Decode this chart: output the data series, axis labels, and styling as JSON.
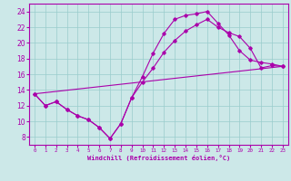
{
  "xlabel": "Windchill (Refroidissement éolien,°C)",
  "line_color": "#aa00aa",
  "background_color": "#cce8e8",
  "grid_color": "#99cccc",
  "xlim": [
    -0.5,
    23.5
  ],
  "ylim": [
    7.0,
    25.0
  ],
  "yticks": [
    8,
    10,
    12,
    14,
    16,
    18,
    20,
    22,
    24
  ],
  "xticks": [
    0,
    1,
    2,
    3,
    4,
    5,
    6,
    7,
    8,
    9,
    10,
    11,
    12,
    13,
    14,
    15,
    16,
    17,
    18,
    19,
    20,
    21,
    22,
    23
  ],
  "line1_x": [
    0,
    1,
    2,
    3,
    4,
    5,
    6,
    7,
    8,
    9,
    10,
    11,
    12,
    13,
    14,
    15,
    16,
    17,
    18,
    19,
    20,
    21,
    22,
    23
  ],
  "line1_y": [
    13.5,
    12.0,
    12.5,
    11.5,
    10.7,
    10.2,
    9.2,
    7.8,
    9.7,
    13.0,
    15.7,
    18.7,
    21.2,
    23.0,
    23.5,
    23.7,
    24.0,
    22.5,
    21.0,
    19.0,
    17.8,
    17.5,
    17.3,
    17.0
  ],
  "line2_x": [
    0,
    1,
    2,
    3,
    4,
    5,
    6,
    7,
    8,
    9,
    10,
    11,
    12,
    13,
    14,
    15,
    16,
    17,
    18,
    19,
    20,
    21,
    22,
    23
  ],
  "line2_y": [
    13.5,
    12.0,
    12.5,
    11.5,
    10.7,
    10.2,
    9.2,
    7.8,
    9.7,
    13.0,
    15.0,
    16.8,
    18.8,
    20.3,
    21.5,
    22.3,
    23.0,
    22.0,
    21.3,
    20.8,
    19.3,
    16.8,
    17.1,
    17.0
  ],
  "line3_x": [
    0,
    23
  ],
  "line3_y": [
    13.5,
    17.0
  ]
}
